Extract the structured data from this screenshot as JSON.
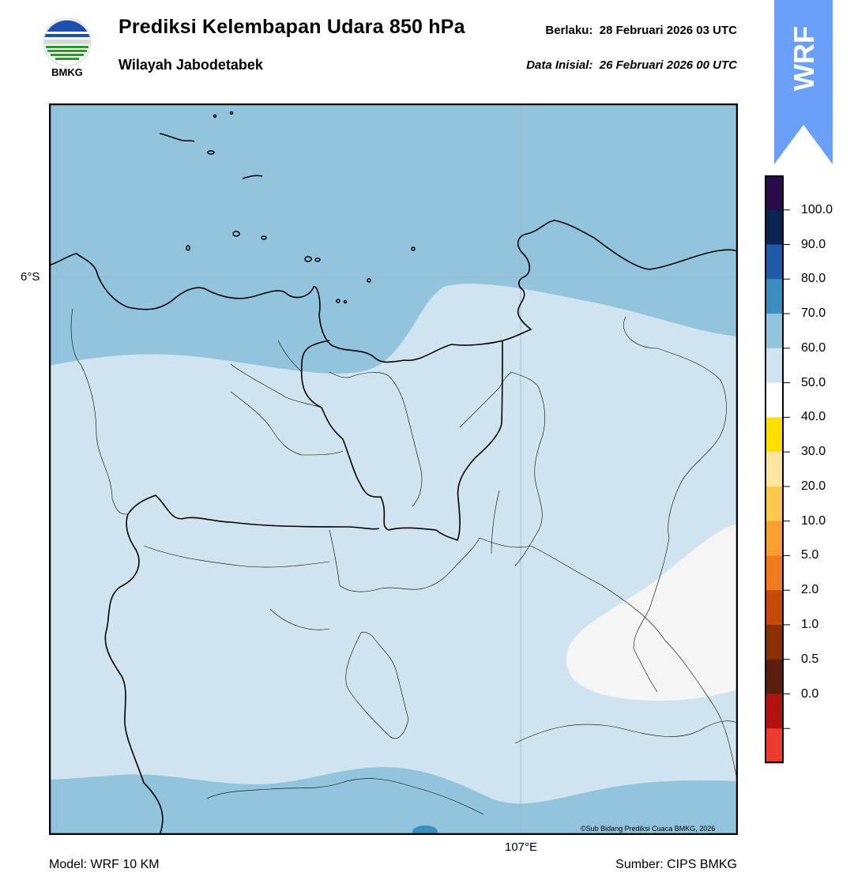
{
  "header": {
    "title": "Prediksi Kelembapan Udara 850 hPa",
    "subtitle": "Wilayah Jabodetabek",
    "valid_label": "Berlaku:",
    "valid_value": "28 Februari 2026 03 UTC",
    "init_label": "Data Inisial:",
    "init_value": "26 Februari 2026 00 UTC"
  },
  "logo": {
    "text": "BMKG",
    "icon": "bmkg-logo"
  },
  "badge": {
    "text": "WRF",
    "color": "#6aa0f8"
  },
  "map": {
    "lat_label": "6°S",
    "lon_label": "107°E",
    "credit": "©Sub Bidang Prediksi Cuaca BMKG, 2026"
  },
  "footer": {
    "model": "Model: WRF 10 KM",
    "source": "Sumber: CIPS BMKG"
  },
  "colorbar": {
    "labels": [
      "100.0",
      "90.0",
      "80.0",
      "70.0",
      "60.0",
      "50.0",
      "40.0",
      "30.0",
      "20.0",
      "10.0",
      "5.0",
      "2.0",
      "1.0",
      "0.5",
      "0.0"
    ],
    "colors": [
      "#2a0a4a",
      "#0b2350",
      "#1f5aa8",
      "#3a8ec0",
      "#93c4dd",
      "#d0e4f0",
      "#ffffff",
      "#ffe000",
      "#ffe5a0",
      "#ffc94f",
      "#f8a030",
      "#f07c1f",
      "#c84a08",
      "#8a2e05",
      "#5a1f0c",
      "#b31310",
      "#ee3b30"
    ]
  },
  "legend_values": {
    "humidity_colors": {
      "above_70": "#93c4dd",
      "60_70": "#d0e4f0",
      "50_60": "#f5f5f5"
    }
  }
}
